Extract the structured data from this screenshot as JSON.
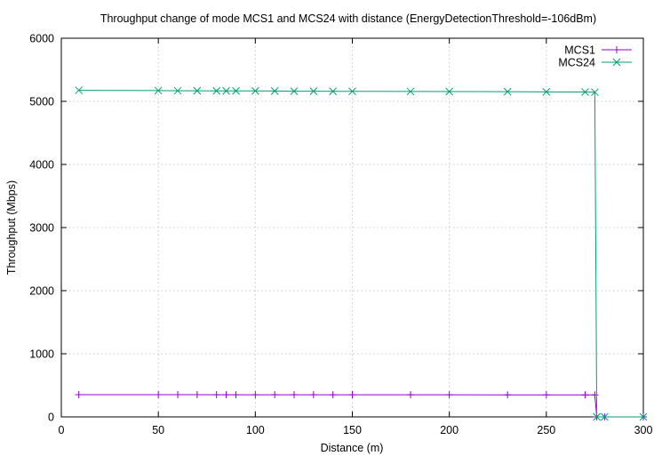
{
  "chart_data": {
    "type": "line",
    "title": "Throughput change of mode MCS1 and MCS24 with distance (EnergyDetectionThreshold=-106dBm)",
    "xlabel": "Distance (m)",
    "ylabel": "Throughput (Mbps)",
    "xlim": [
      0,
      300
    ],
    "ylim": [
      0,
      6000
    ],
    "xticks": [
      0,
      50,
      100,
      150,
      200,
      250,
      300
    ],
    "yticks": [
      0,
      1000,
      2000,
      3000,
      4000,
      5000,
      6000
    ],
    "grid": true,
    "legend_position": "top-right",
    "series": [
      {
        "name": "MCS1",
        "color": "#9400d3",
        "marker": "plus",
        "x": [
          9,
          50,
          60,
          70,
          80,
          85,
          90,
          100,
          110,
          120,
          130,
          140,
          150,
          180,
          200,
          230,
          250,
          270,
          275,
          276,
          280,
          300
        ],
        "y": [
          352,
          352,
          352,
          352,
          351,
          351,
          351,
          351,
          351,
          351,
          351,
          350,
          350,
          350,
          350,
          349,
          349,
          348,
          348,
          0,
          0,
          0
        ]
      },
      {
        "name": "MCS24",
        "color": "#009e73",
        "marker": "x",
        "x": [
          9,
          50,
          60,
          70,
          80,
          85,
          90,
          100,
          110,
          120,
          130,
          140,
          150,
          180,
          200,
          230,
          250,
          270,
          275,
          276,
          280,
          300
        ],
        "y": [
          5175,
          5170,
          5168,
          5167,
          5166,
          5165,
          5165,
          5165,
          5164,
          5160,
          5160,
          5158,
          5158,
          5156,
          5155,
          5153,
          5150,
          5148,
          5145,
          0,
          0,
          0
        ]
      }
    ]
  }
}
